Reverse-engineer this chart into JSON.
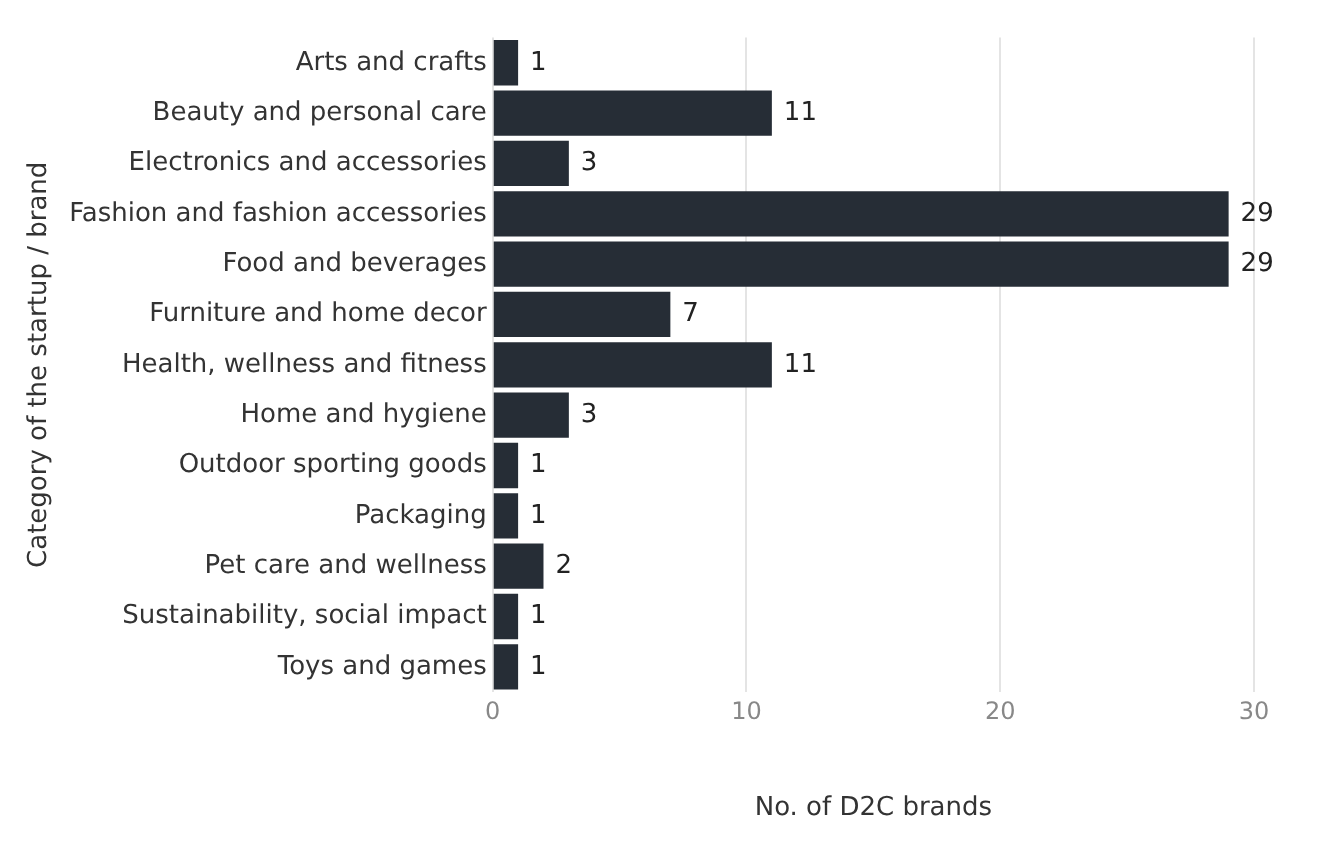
{
  "chart_data": {
    "type": "bar",
    "orientation": "horizontal",
    "xlabel": "No. of D2C brands",
    "ylabel": "Category of the startup / brand",
    "categories": [
      "Arts and crafts",
      "Beauty and personal care",
      "Electronics and accessories",
      "Fashion and fashion accessories",
      "Food and beverages",
      "Furniture and home decor",
      "Health, wellness and fitness",
      "Home and hygiene",
      "Outdoor sporting goods",
      "Packaging",
      "Pet care and wellness",
      "Sustainability, social impact",
      "Toys and games"
    ],
    "values": [
      1,
      11,
      3,
      29,
      29,
      7,
      11,
      3,
      1,
      1,
      2,
      1,
      1
    ],
    "color": "#262d36",
    "xlim": [
      0,
      30
    ],
    "xticks": [
      0,
      10,
      20,
      30
    ],
    "grid": "x",
    "data_labels": true,
    "legend": false
  }
}
